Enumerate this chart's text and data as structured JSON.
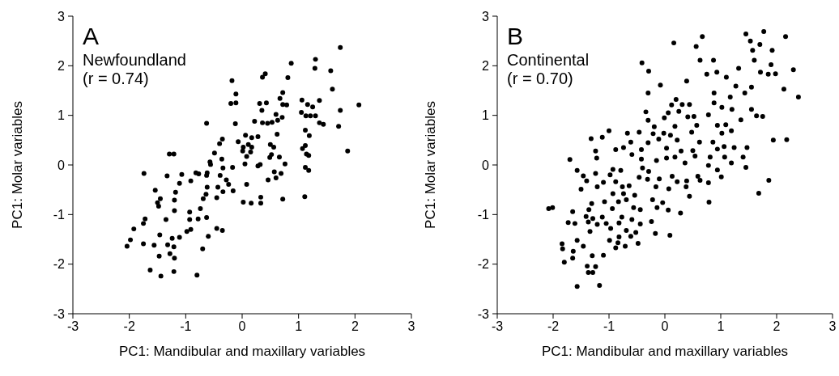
{
  "chart_data": [
    {
      "type": "scatter",
      "annotations": [
        "A",
        "Newfoundland",
        "(r = 0.74)"
      ],
      "xlabel": "PC1: Mandibular and maxillary variables",
      "ylabel": "PC1: Molar variables",
      "xlim": [
        -3,
        3
      ],
      "ylim": [
        -3,
        3
      ],
      "xticks": [
        -3,
        -2,
        -1,
        0,
        1,
        2,
        3
      ],
      "yticks": [
        -3,
        -2,
        -1,
        0,
        1,
        2,
        3
      ],
      "marker": "circle",
      "series": [
        {
          "color": "#000000",
          "x": [
            1.74,
            0.87,
            1.3,
            1.29,
            1.57,
            0.41,
            0.36,
            0.81,
            -0.18,
            1.6,
            -0.11,
            0.72,
            0.67,
            -0.2,
            -0.11,
            0.31,
            0.43,
            0.72,
            0.79,
            1.06,
            1.16,
            1.25,
            1.37,
            2.07,
            1.74,
            0.35,
            1.05,
            1.13,
            1.21,
            1.3,
            0.6,
            0.71,
            0.63,
            0.22,
            0.36,
            0.45,
            0.53,
            -0.63,
            -0.12,
            1.37,
            1.44,
            1.71,
            1.12,
            0.62,
            0.06,
            0.17,
            0.28,
            1.19,
            -0.35,
            -0.4,
            -0.07,
            0.02,
            0.11,
            0.17,
            0.5,
            0.56,
            1.12,
            1.07,
            0.01,
            0.15,
            0.08,
            0.52,
            0.49,
            0.66,
            1.14,
            1.18,
            1.87,
            -0.49,
            -1.29,
            -1.21,
            -0.36,
            -0.57,
            -0.56,
            0.05,
            0.76,
            0.28,
            0.32,
            -0.17,
            -0.34,
            1.12,
            1.18,
            -1.74,
            -1.07,
            -1.33,
            -0.91,
            -0.82,
            -0.77,
            -0.62,
            -0.63,
            -0.39,
            -0.28,
            -0.24,
            0.57,
            0.69,
            0.46,
            0.6,
            0.08,
            -1.11,
            -1.54,
            -1.18,
            -0.62,
            -0.64,
            -0.43,
            -0.34,
            -0.16,
            -1.45,
            -1.5,
            -1.48,
            -1.2,
            -0.69,
            -0.45,
            0.33,
            0.72,
            1.11,
            0.02,
            0.16,
            0.33,
            -0.74,
            -1.2,
            -0.93,
            -1.72,
            -1.75,
            -1.35,
            -0.93,
            -0.78,
            -0.63,
            -1.92,
            -0.45,
            -0.35,
            -0.91,
            -0.98,
            -1.46,
            -1.11,
            -1.24,
            -0.6,
            -1.98,
            -2.04,
            -1.75,
            -1.56,
            -1.32,
            -1.21,
            -0.7,
            -1.28,
            -1.47,
            -1.2,
            -1.63,
            -1.44,
            -1.21,
            -0.8
          ],
          "values": [
            2.37,
            2.05,
            2.13,
            1.95,
            1.9,
            1.84,
            1.77,
            1.76,
            1.7,
            1.53,
            1.43,
            1.46,
            1.34,
            1.24,
            1.25,
            1.24,
            1.25,
            1.22,
            1.21,
            1.31,
            1.22,
            1.17,
            1.3,
            1.21,
            1.1,
            1.1,
            1.06,
            0.99,
            0.99,
            0.99,
            1.02,
            0.96,
            0.9,
            0.88,
            0.85,
            0.84,
            0.86,
            0.84,
            0.83,
            0.85,
            0.82,
            0.78,
            0.7,
            0.62,
            0.6,
            0.55,
            0.57,
            0.59,
            0.52,
            0.43,
            0.47,
            0.36,
            0.41,
            0.36,
            0.41,
            0.36,
            0.39,
            0.33,
            0.28,
            0.26,
            0.17,
            0.21,
            0.15,
            0.16,
            0.22,
            0.19,
            0.28,
            0.24,
            0.22,
            0.22,
            0.12,
            0.06,
            0.01,
            0.02,
            0.02,
            -0.02,
            0.01,
            -0.05,
            -0.06,
            -0.05,
            -0.11,
            -0.17,
            -0.19,
            -0.22,
            -0.32,
            -0.16,
            -0.18,
            -0.16,
            -0.21,
            -0.21,
            -0.3,
            -0.39,
            -0.14,
            -0.17,
            -0.3,
            -0.26,
            -0.39,
            -0.37,
            -0.51,
            -0.55,
            -0.45,
            -0.59,
            -0.45,
            -0.54,
            -0.52,
            -0.68,
            -0.76,
            -0.83,
            -0.71,
            -0.68,
            -0.66,
            -0.65,
            -0.69,
            -0.64,
            -0.75,
            -0.77,
            -0.77,
            -0.88,
            -0.92,
            -0.95,
            -1.09,
            -1.18,
            -1.1,
            -1.1,
            -1.09,
            -1.06,
            -1.29,
            -1.28,
            -1.32,
            -1.3,
            -1.34,
            -1.41,
            -1.46,
            -1.48,
            -1.44,
            -1.51,
            -1.64,
            -1.59,
            -1.62,
            -1.61,
            -1.65,
            -1.69,
            -1.79,
            -1.84,
            -1.88,
            -2.12,
            -2.24,
            -2.15,
            -2.22
          ]
        }
      ]
    },
    {
      "type": "scatter",
      "annotations": [
        "B",
        "Continental",
        "(r = 0.70)"
      ],
      "xlabel": "PC1: Mandibular and maxillary variables",
      "ylabel": "PC1: Molar variables",
      "xlim": [
        -3,
        3
      ],
      "ylim": [
        -3,
        3
      ],
      "xticks": [
        -3,
        -2,
        -1,
        0,
        1,
        2,
        3
      ],
      "yticks": [
        -3,
        -2,
        -1,
        0,
        1,
        2,
        3
      ],
      "marker": "circle",
      "series": [
        {
          "color": "#000000",
          "x": [
            1.77,
            1.45,
            2.16,
            0.67,
            0.16,
            1.53,
            1.7,
            0.56,
            1.57,
            1.92,
            -0.41,
            0.63,
            0.87,
            1.6,
            1.9,
            -0.29,
            0.93,
            0.75,
            1.32,
            2.3,
            1.71,
            1.85,
            1.98,
            1.1,
            0.39,
            -0.08,
            1.27,
            1.55,
            2.13,
            -0.3,
            0.88,
            1.43,
            2.39,
            1.17,
            0.2,
            0.12,
            0.31,
            0.44,
            0.88,
            1.02,
            1.2,
            1.55,
            -0.34,
            0.06,
            0.25,
            -0.01,
            0.41,
            0.52,
            0.78,
            1.36,
            1.64,
            1.75,
            -0.3,
            -0.19,
            0.18,
            0.57,
            0.94,
            1.09,
            -1.0,
            -0.46,
            -0.67,
            -0.21,
            -0.02,
            0.1,
            0.48,
            1.02,
            1.19,
            -1.12,
            -1.32,
            -0.61,
            -0.3,
            -0.11,
            0.22,
            0.62,
            0.86,
            1.94,
            2.18,
            -0.88,
            -0.74,
            -0.42,
            0.03,
            0.29,
            0.5,
            0.94,
            1.06,
            1.24,
            1.47,
            -1.24,
            -0.59,
            -0.42,
            0.03,
            0.18,
            0.54,
            0.81,
            1.07,
            1.4,
            -1.7,
            -1.22,
            -0.15,
            0.36,
            1.19,
            -1.57,
            -0.93,
            -0.79,
            -0.4,
            -0.29,
            0.78,
            0.94,
            1.45,
            -1.24,
            -1.46,
            -0.98,
            0.13,
            0.59,
            1.01,
            -1.4,
            -1.1,
            -0.88,
            -0.46,
            -0.31,
            -0.1,
            0.22,
            0.39,
            0.63,
            0.78,
            1.86,
            -1.5,
            -1.21,
            -0.93,
            -0.76,
            -0.64,
            -0.16,
            0.07,
            0.38,
            1.68,
            -0.74,
            -0.54,
            0.44,
            -1.08,
            -0.83,
            -0.69,
            -0.22,
            -0.04,
            0.79,
            -1.31,
            -2.08,
            -2.01,
            -1.65,
            -1.36,
            -0.56,
            -0.44,
            -0.14,
            0.06,
            0.28,
            -1.41,
            -1.29,
            -1.12,
            -0.94,
            -0.77,
            -1.73,
            -1.61,
            -1.37,
            -1.21,
            -1.05,
            -0.82,
            -0.59,
            -0.44,
            -0.24,
            -1.34,
            -0.97,
            -0.82,
            -0.69,
            -0.52,
            -0.17,
            0.09,
            -1.57,
            -0.99,
            -0.84,
            -0.61,
            -0.48,
            -1.84,
            -1.83,
            -1.46,
            -0.88,
            -0.71,
            -1.64,
            -1.1,
            -1.3,
            -1.65,
            -1.8,
            -1.39,
            -1.24,
            -1.37,
            -1.29,
            -1.57,
            -1.17
          ],
          "values": [
            2.69,
            2.64,
            2.59,
            2.59,
            2.46,
            2.5,
            2.43,
            2.39,
            2.31,
            2.31,
            2.06,
            2.11,
            2.11,
            2.11,
            2.02,
            1.89,
            1.87,
            1.83,
            1.95,
            1.92,
            1.87,
            1.83,
            1.84,
            1.77,
            1.69,
            1.61,
            1.59,
            1.57,
            1.53,
            1.45,
            1.45,
            1.45,
            1.37,
            1.37,
            1.32,
            1.21,
            1.22,
            1.22,
            1.25,
            1.16,
            1.12,
            1.12,
            1.07,
            1.05,
            1.08,
            0.95,
            0.97,
            0.98,
            1.01,
            0.91,
            0.99,
            0.98,
            0.9,
            0.77,
            0.78,
            0.8,
            0.8,
            0.81,
            0.69,
            0.66,
            0.64,
            0.63,
            0.64,
            0.6,
            0.66,
            0.64,
            0.69,
            0.56,
            0.53,
            0.46,
            0.45,
            0.52,
            0.5,
            0.46,
            0.46,
            0.5,
            0.51,
            0.31,
            0.35,
            0.31,
            0.34,
            0.28,
            0.29,
            0.32,
            0.37,
            0.35,
            0.35,
            0.28,
            0.21,
            0.12,
            0.14,
            0.16,
            0.18,
            0.16,
            0.16,
            0.16,
            0.11,
            0.14,
            0.09,
            0.04,
            0.04,
            -0.11,
            -0.09,
            -0.11,
            -0.06,
            -0.13,
            -0.01,
            -0.1,
            -0.05,
            -0.17,
            -0.22,
            -0.2,
            -0.23,
            -0.23,
            -0.24,
            -0.32,
            -0.35,
            -0.34,
            -0.25,
            -0.29,
            -0.28,
            -0.34,
            -0.32,
            -0.31,
            -0.36,
            -0.31,
            -0.49,
            -0.44,
            -0.58,
            -0.44,
            -0.42,
            -0.44,
            -0.48,
            -0.44,
            -0.57,
            -0.58,
            -0.61,
            -0.63,
            -0.74,
            -0.74,
            -0.7,
            -0.7,
            -0.76,
            -0.75,
            -0.78,
            -0.88,
            -0.86,
            -0.94,
            -0.9,
            -0.86,
            -0.9,
            -0.86,
            -0.91,
            -0.97,
            -1.04,
            -1.08,
            -1.05,
            -0.88,
            -1.05,
            -1.16,
            -1.18,
            -1.15,
            -1.2,
            -1.18,
            -1.17,
            -1.1,
            -1.19,
            -1.14,
            -1.34,
            -1.28,
            -1.45,
            -1.32,
            -1.36,
            -1.38,
            -1.42,
            -1.52,
            -1.52,
            -1.57,
            -1.44,
            -1.58,
            -1.59,
            -1.69,
            -1.64,
            -1.67,
            -1.64,
            -1.74,
            -1.82,
            -1.83,
            -1.88,
            -1.96,
            -2.04,
            -2.05,
            -2.17,
            -2.17,
            -2.45,
            -2.43
          ]
        }
      ]
    }
  ]
}
